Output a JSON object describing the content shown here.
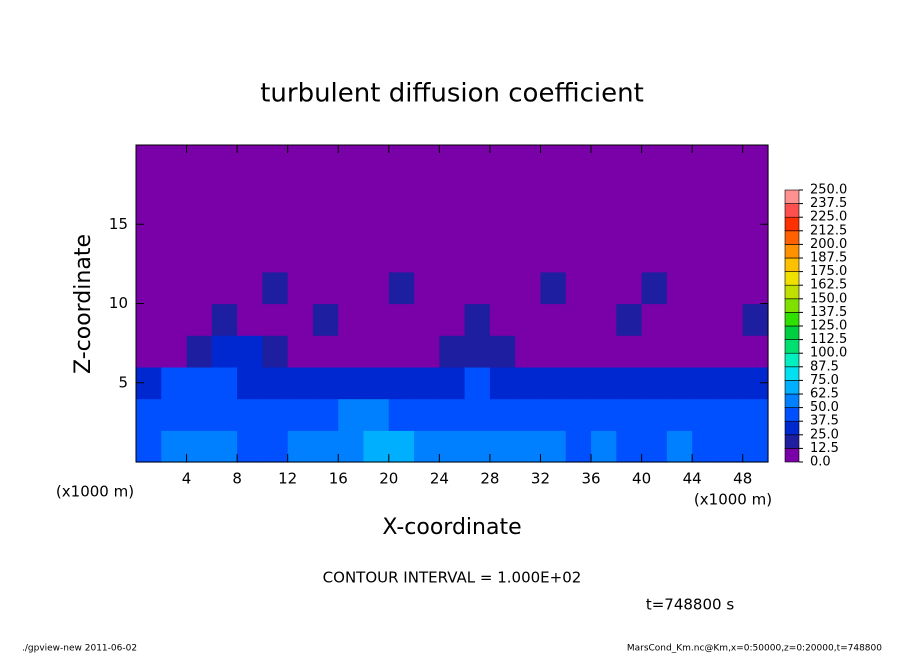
{
  "chart_data": {
    "type": "heatmap",
    "title": "turbulent diffusion coefficient",
    "xlabel": "X-coordinate",
    "ylabel": "Z-coordinate",
    "x_unit": "(x1000 m)",
    "xlim": [
      0,
      50
    ],
    "ylim": [
      0,
      20
    ],
    "xticks": [
      4,
      8,
      12,
      16,
      20,
      24,
      28,
      32,
      36,
      40,
      44,
      48
    ],
    "yticks": [
      5,
      10,
      15
    ],
    "values": [
      [
        45,
        50,
        55,
        50,
        45,
        48,
        52,
        55,
        60,
        65,
        70,
        62,
        58,
        55,
        60,
        55,
        50,
        48,
        52,
        45,
        48,
        50,
        45,
        48,
        44
      ],
      [
        42,
        45,
        40,
        44,
        48,
        40,
        42,
        45,
        50,
        55,
        45,
        44,
        42,
        45,
        48,
        40,
        38,
        42,
        45,
        40,
        44,
        42,
        45,
        40,
        42
      ],
      [
        35,
        38,
        40,
        38,
        35,
        32,
        30,
        28,
        35,
        32,
        30,
        28,
        30,
        38,
        35,
        30,
        32,
        28,
        30,
        28,
        32,
        30,
        35,
        32,
        30
      ],
      [
        8,
        10,
        15,
        28,
        25,
        20,
        12,
        8,
        10,
        6,
        8,
        10,
        15,
        20,
        18,
        10,
        6,
        6,
        4,
        5,
        6,
        6,
        5,
        6,
        5
      ],
      [
        4,
        4,
        6,
        14,
        10,
        12,
        8,
        14,
        6,
        8,
        6,
        8,
        10,
        14,
        10,
        8,
        6,
        4,
        6,
        14,
        6,
        6,
        4,
        6,
        14
      ],
      [
        2,
        4,
        6,
        8,
        6,
        14,
        10,
        6,
        4,
        6,
        14,
        6,
        4,
        6,
        8,
        6,
        14,
        6,
        8,
        6,
        14,
        6,
        4,
        6,
        4
      ],
      [
        2,
        2,
        4,
        6,
        4,
        2,
        2,
        2,
        2,
        4,
        6,
        4,
        2,
        4,
        2,
        2,
        4,
        6,
        4,
        4,
        6,
        4,
        2,
        4,
        2
      ],
      [
        0,
        0,
        0,
        0,
        0,
        0,
        0,
        0,
        0,
        0,
        0,
        0,
        0,
        0,
        0,
        0,
        0,
        0,
        0,
        0,
        0,
        0,
        0,
        0,
        0
      ],
      [
        0,
        0,
        0,
        0,
        0,
        0,
        0,
        0,
        0,
        0,
        0,
        0,
        0,
        0,
        0,
        0,
        0,
        0,
        0,
        0,
        0,
        0,
        0,
        0,
        0
      ],
      [
        0,
        0,
        0,
        0,
        0,
        0,
        0,
        0,
        0,
        0,
        0,
        0,
        0,
        0,
        0,
        0,
        0,
        0,
        0,
        0,
        0,
        0,
        0,
        0,
        0
      ]
    ],
    "levels": [
      {
        "value": 0,
        "label": "0.0"
      },
      12.5,
      {
        "value": 25,
        "label": "25.0"
      },
      37.5,
      {
        "value": 50,
        "label": "50.0"
      },
      62.5,
      {
        "value": 75,
        "label": "75.0"
      },
      87.5,
      {
        "value": 100,
        "label": "100.0"
      },
      112.5,
      {
        "value": 125,
        "label": "125.0"
      },
      137.5,
      {
        "value": 150,
        "label": "150.0"
      },
      162.5,
      {
        "value": 175,
        "label": "175.0"
      },
      187.5,
      {
        "value": 200,
        "label": "200.0"
      },
      212.5,
      {
        "value": 225,
        "label": "225.0"
      },
      237.5,
      {
        "value": 250,
        "label": "250.0"
      }
    ],
    "colors": [
      "#7a00a8",
      "#1e1ea0",
      "#0028d0",
      "#0050ff",
      "#0080ff",
      "#00b0ff",
      "#00e0f0",
      "#00f0c0",
      "#00e070",
      "#00d040",
      "#30e000",
      "#80e000",
      "#c0e000",
      "#f0e000",
      "#ffc000",
      "#ff9000",
      "#ff6000",
      "#ff3000",
      "#ff5050",
      "#ff9090"
    ],
    "annotation": "CONTOUR INTERVAL = 1.000E+02",
    "time_label": "t=748800 s",
    "footer_left": "./gpview-new   2011-06-02",
    "footer_right": "MarsCond_Km.nc@Km,x=0:50000,z=0:20000,t=748800"
  }
}
